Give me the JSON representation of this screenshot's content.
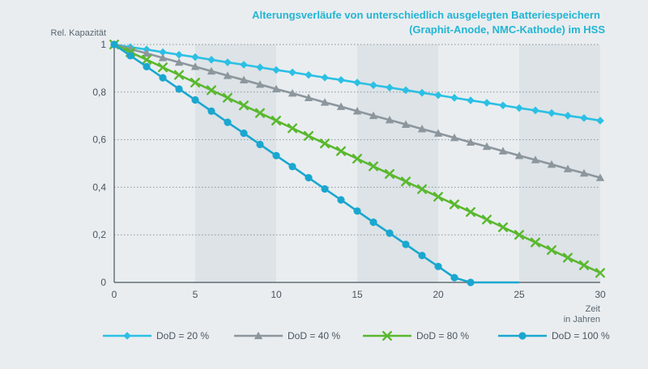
{
  "chart_data": {
    "type": "line",
    "title": "Alterungsverläufe von unterschiedlich ausgelegten Batteriespeichern",
    "subtitle": "(Graphit-Anode, NMC-Kathode) im HSS",
    "ylabel": "Rel. Kapazität",
    "xlabel": "Zeit",
    "xlabel_sub": "in Jahren",
    "xlim": [
      0,
      30
    ],
    "ylim": [
      0,
      1
    ],
    "x_ticks": [
      0,
      5,
      10,
      15,
      20,
      25,
      30
    ],
    "x_tick_labels": [
      "0",
      "5",
      "10",
      "15",
      "20",
      "25",
      "30"
    ],
    "y_ticks": [
      0,
      0.2,
      0.4,
      0.6,
      0.8,
      1
    ],
    "y_tick_labels": [
      "0",
      "0,2",
      "0,4",
      "0,6",
      "0,8",
      "1"
    ],
    "grid": "horizontal dotted",
    "shaded_bands": [
      [
        5,
        10
      ],
      [
        15,
        20
      ],
      [
        25,
        30
      ]
    ],
    "legend_position": "bottom",
    "series": [
      {
        "name": "DoD = 20 %",
        "color": "#2bc0e4",
        "marker": "diamond",
        "x": [
          0,
          1,
          2,
          3,
          4,
          5,
          6,
          7,
          8,
          9,
          10,
          11,
          12,
          13,
          14,
          15,
          16,
          17,
          18,
          19,
          20,
          21,
          22,
          23,
          24,
          25,
          26,
          27,
          28,
          29,
          30
        ],
        "y": [
          1.0,
          0.989,
          0.979,
          0.968,
          0.957,
          0.947,
          0.936,
          0.925,
          0.915,
          0.904,
          0.893,
          0.883,
          0.872,
          0.861,
          0.851,
          0.84,
          0.829,
          0.819,
          0.808,
          0.797,
          0.787,
          0.776,
          0.765,
          0.755,
          0.744,
          0.733,
          0.723,
          0.712,
          0.701,
          0.691,
          0.68
        ]
      },
      {
        "name": "DoD = 40 %",
        "color": "#8c969d",
        "marker": "triangle",
        "x": [
          0,
          1,
          2,
          3,
          4,
          5,
          6,
          7,
          8,
          9,
          10,
          11,
          12,
          13,
          14,
          15,
          16,
          17,
          18,
          19,
          20,
          21,
          22,
          23,
          24,
          25,
          26,
          27,
          28,
          29,
          30
        ],
        "y": [
          1.0,
          0.981,
          0.963,
          0.944,
          0.925,
          0.907,
          0.888,
          0.869,
          0.851,
          0.832,
          0.813,
          0.795,
          0.776,
          0.757,
          0.739,
          0.72,
          0.701,
          0.683,
          0.664,
          0.645,
          0.627,
          0.608,
          0.589,
          0.571,
          0.552,
          0.533,
          0.515,
          0.496,
          0.477,
          0.459,
          0.44
        ]
      },
      {
        "name": "DoD = 80 %",
        "color": "#5ab82e",
        "marker": "x",
        "x": [
          0,
          1,
          2,
          3,
          4,
          5,
          6,
          7,
          8,
          9,
          10,
          11,
          12,
          13,
          14,
          15,
          16,
          17,
          18,
          19,
          20,
          21,
          22,
          23,
          24,
          25,
          26,
          27,
          28,
          29,
          30
        ],
        "y": [
          1.0,
          0.968,
          0.936,
          0.904,
          0.872,
          0.84,
          0.808,
          0.776,
          0.744,
          0.712,
          0.68,
          0.648,
          0.616,
          0.584,
          0.552,
          0.52,
          0.488,
          0.456,
          0.424,
          0.392,
          0.36,
          0.328,
          0.296,
          0.264,
          0.232,
          0.2,
          0.168,
          0.136,
          0.104,
          0.072,
          0.04
        ]
      },
      {
        "name": "DoD = 100 %",
        "color": "#1aa7cf",
        "marker": "circle",
        "x": [
          0,
          1,
          2,
          3,
          4,
          5,
          6,
          7,
          8,
          9,
          10,
          11,
          12,
          13,
          14,
          15,
          16,
          17,
          18,
          19,
          20,
          21,
          22,
          23,
          24,
          25
        ],
        "y": [
          1.0,
          0.953,
          0.907,
          0.86,
          0.813,
          0.767,
          0.72,
          0.673,
          0.627,
          0.58,
          0.533,
          0.487,
          0.44,
          0.393,
          0.347,
          0.3,
          0.253,
          0.207,
          0.16,
          0.113,
          0.067,
          0.02,
          0.0,
          0.0,
          0.0,
          0.0
        ]
      }
    ]
  }
}
